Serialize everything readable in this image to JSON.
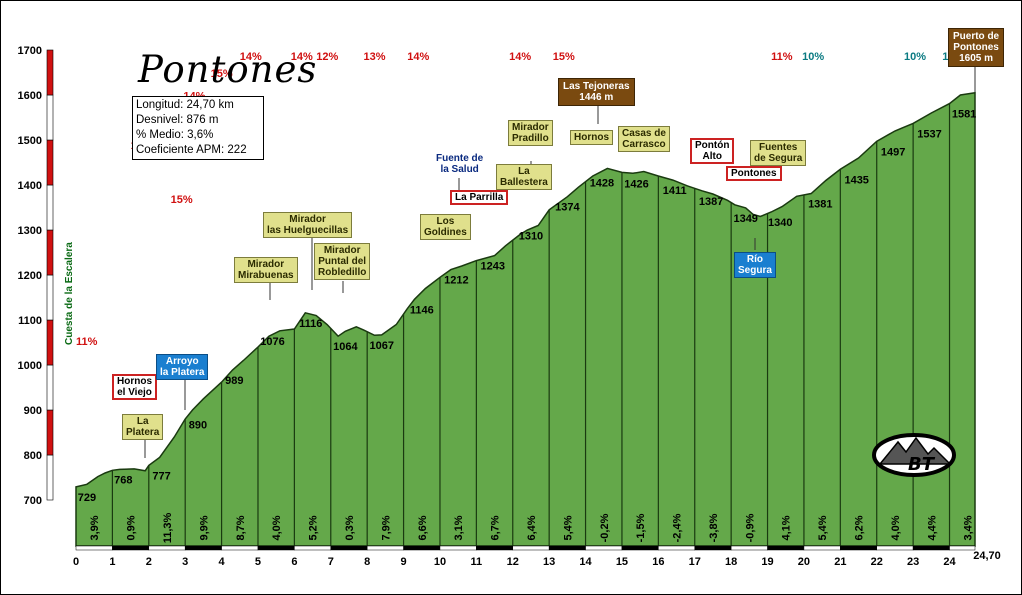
{
  "chart_data": {
    "type": "area",
    "title": "Pontones",
    "info": {
      "longitud": "Longitud: 24,70 km",
      "desnivel": "Desnivel: 876 m",
      "medio": "% Medio: 3,6%",
      "coeficiente": "Coeficiente APM: 222"
    },
    "ylim": [
      700,
      1700
    ],
    "yticks": [
      700,
      800,
      900,
      1000,
      1100,
      1200,
      1300,
      1400,
      1500,
      1600,
      1700
    ],
    "xlim": [
      0,
      24.7
    ],
    "xticks": [
      "0",
      "1",
      "2",
      "3",
      "4",
      "5",
      "6",
      "7",
      "8",
      "9",
      "10",
      "11",
      "12",
      "13",
      "14",
      "15",
      "16",
      "17",
      "18",
      "19",
      "20",
      "21",
      "22",
      "23",
      "24"
    ],
    "x_end_label": "24,70",
    "segment_gradients": [
      "3,9%",
      "0,9%",
      "11,3%",
      "9,9%",
      "8,7%",
      "4,0%",
      "5,2%",
      "0,3%",
      "7,9%",
      "6,6%",
      "3,1%",
      "6,7%",
      "6,4%",
      "5,4%",
      "-0,2%",
      "-1,5%",
      "-2,4%",
      "-3,8%",
      "-0,9%",
      "4,1%",
      "5,4%",
      "6,2%",
      "4,0%",
      "4,4%",
      "3,4%"
    ],
    "profile": [
      [
        0,
        729
      ],
      [
        0.3,
        735
      ],
      [
        0.6,
        752
      ],
      [
        0.8,
        760
      ],
      [
        1.0,
        766
      ],
      [
        1.2,
        768
      ],
      [
        1.6,
        769
      ],
      [
        1.9,
        765
      ],
      [
        2.0,
        777
      ],
      [
        2.3,
        795
      ],
      [
        2.7,
        840
      ],
      [
        3.0,
        880
      ],
      [
        3.2,
        900
      ],
      [
        3.5,
        925
      ],
      [
        4.0,
        962
      ],
      [
        4.3,
        989
      ],
      [
        4.6,
        1010
      ],
      [
        5.0,
        1040
      ],
      [
        5.3,
        1064
      ],
      [
        5.6,
        1076
      ],
      [
        6.0,
        1080
      ],
      [
        6.3,
        1116
      ],
      [
        6.6,
        1110
      ],
      [
        6.9,
        1090
      ],
      [
        7.2,
        1064
      ],
      [
        7.4,
        1075
      ],
      [
        7.7,
        1085
      ],
      [
        7.9,
        1078
      ],
      [
        8.2,
        1066
      ],
      [
        8.4,
        1067
      ],
      [
        8.8,
        1090
      ],
      [
        9.1,
        1125
      ],
      [
        9.3,
        1146
      ],
      [
        9.6,
        1170
      ],
      [
        10.0,
        1195
      ],
      [
        10.3,
        1212
      ],
      [
        10.6,
        1220
      ],
      [
        11.0,
        1232
      ],
      [
        11.5,
        1243
      ],
      [
        11.8,
        1265
      ],
      [
        12.2,
        1290
      ],
      [
        12.4,
        1300
      ],
      [
        12.7,
        1310
      ],
      [
        13.0,
        1345
      ],
      [
        13.5,
        1374
      ],
      [
        13.8,
        1395
      ],
      [
        14.2,
        1420
      ],
      [
        14.6,
        1437
      ],
      [
        15.0,
        1428
      ],
      [
        15.3,
        1426
      ],
      [
        15.6,
        1430
      ],
      [
        16.0,
        1420
      ],
      [
        16.4,
        1411
      ],
      [
        16.8,
        1398
      ],
      [
        17.2,
        1387
      ],
      [
        17.5,
        1380
      ],
      [
        17.9,
        1366
      ],
      [
        18.1,
        1356
      ],
      [
        18.4,
        1349
      ],
      [
        18.6,
        1335
      ],
      [
        18.8,
        1330
      ],
      [
        19.1,
        1340
      ],
      [
        19.4,
        1352
      ],
      [
        19.8,
        1375
      ],
      [
        20.2,
        1381
      ],
      [
        20.6,
        1410
      ],
      [
        21.0,
        1435
      ],
      [
        21.5,
        1460
      ],
      [
        22.0,
        1497
      ],
      [
        22.5,
        1520
      ],
      [
        23.0,
        1537
      ],
      [
        23.5,
        1560
      ],
      [
        24.0,
        1581
      ],
      [
        24.3,
        1600
      ],
      [
        24.7,
        1605
      ]
    ],
    "peak_labels": [
      {
        "x": 0.3,
        "y": 729,
        "text": "729"
      },
      {
        "x": 1.3,
        "y": 768,
        "text": "768"
      },
      {
        "x": 2.35,
        "y": 777,
        "text": "777"
      },
      {
        "x": 3.35,
        "y": 890,
        "text": "890"
      },
      {
        "x": 4.35,
        "y": 989,
        "text": "989"
      },
      {
        "x": 5.4,
        "y": 1076,
        "text": "1076"
      },
      {
        "x": 6.45,
        "y": 1116,
        "text": "1116"
      },
      {
        "x": 7.4,
        "y": 1064,
        "text": "1064"
      },
      {
        "x": 8.4,
        "y": 1067,
        "text": "1067"
      },
      {
        "x": 9.5,
        "y": 1146,
        "text": "1146"
      },
      {
        "x": 10.45,
        "y": 1212,
        "text": "1212"
      },
      {
        "x": 11.45,
        "y": 1243,
        "text": "1243"
      },
      {
        "x": 12.5,
        "y": 1310,
        "text": "1310"
      },
      {
        "x": 13.5,
        "y": 1374,
        "text": "1374"
      },
      {
        "x": 14.45,
        "y": 1428,
        "text": "1428"
      },
      {
        "x": 15.4,
        "y": 1426,
        "text": "1426"
      },
      {
        "x": 16.45,
        "y": 1411,
        "text": "1411"
      },
      {
        "x": 17.45,
        "y": 1387,
        "text": "1387"
      },
      {
        "x": 18.4,
        "y": 1349,
        "text": "1349"
      },
      {
        "x": 19.35,
        "y": 1340,
        "text": "1340"
      },
      {
        "x": 20.45,
        "y": 1381,
        "text": "1381"
      },
      {
        "x": 21.45,
        "y": 1435,
        "text": "1435"
      },
      {
        "x": 22.45,
        "y": 1497,
        "text": "1497"
      },
      {
        "x": 23.45,
        "y": 1537,
        "text": "1537"
      },
      {
        "x": 24.4,
        "y": 1581,
        "text": "1581"
      }
    ],
    "gradient_annotations": [
      {
        "x": 0.0,
        "y": 1045,
        "text": "11%",
        "color": "#d01010"
      },
      {
        "x": 1.5,
        "y": 1480,
        "text": "14%",
        "color": "#d01010"
      },
      {
        "x": 2.6,
        "y": 1360,
        "text": "15%",
        "color": "#d01010"
      },
      {
        "x": 2.95,
        "y": 1590,
        "text": "14%",
        "color": "#d01010"
      },
      {
        "x": 3.7,
        "y": 1640,
        "text": "15%",
        "color": "#d01010"
      },
      {
        "x": 4.5,
        "y": 1700,
        "text": "14%",
        "color": "#d01010"
      },
      {
        "x": 5.9,
        "y": 1760,
        "text": "14%",
        "color": "#d01010"
      },
      {
        "x": 6.6,
        "y": 1705,
        "text": "12%",
        "color": "#d01010"
      },
      {
        "x": 7.9,
        "y": 1760,
        "text": "13%",
        "color": "#d01010"
      },
      {
        "x": 9.1,
        "y": 1810,
        "text": "14%",
        "color": "#d01010"
      },
      {
        "x": 11.9,
        "y": 1880,
        "text": "14%",
        "color": "#d01010"
      },
      {
        "x": 13.1,
        "y": 1910,
        "text": "15%",
        "color": "#d01010"
      },
      {
        "x": 19.1,
        "y": 1880,
        "text": "11%",
        "color": "#d01010"
      },
      {
        "x": 19.95,
        "y": 1860,
        "text": "10%",
        "color": "#0a7a82"
      },
      {
        "x": 22.75,
        "y": 1880,
        "text": "10%",
        "color": "#0a7a82"
      },
      {
        "x": 23.8,
        "y": 1860,
        "text": "10%",
        "color": "#0a7a82"
      }
    ],
    "places": {
      "platera": "La\nPlatera",
      "hornos_viejo": "Hornos\nel Viejo",
      "arroyo": "Arroyo\nla Platera",
      "mirabuenas": "Mirador\nMirabuenas",
      "huelguecillas": "Mirador\nlas Huelguecillas",
      "robledillo": "Mirador\nPuntal del\nRobledillo",
      "goldines": "Los\nGoldines",
      "parrilla": "La Parrilla",
      "fuente_salud": "Fuente de\nla Salud",
      "ballestera": "La\nBallestera",
      "pradillo": "Mirador\nPradillo",
      "tejoneras": "Las Tejoneras\n1446 m",
      "hornos": "Hornos",
      "casas": "Casas de\nCarrasco",
      "ponton_alto": "Pontón\nAlto",
      "pontones": "Pontones",
      "rio_segura": "Río\nSegura",
      "fuentes_segura": "Fuentes\nde Segura",
      "puerto": "Puerto de\nPontones\n1605 m",
      "escalera": "Cuesta de la Escalera"
    },
    "colors": {
      "fill": "#64a84a",
      "stroke": "#1a3a10",
      "axisbar": "#d01010",
      "band": "#000000"
    }
  }
}
